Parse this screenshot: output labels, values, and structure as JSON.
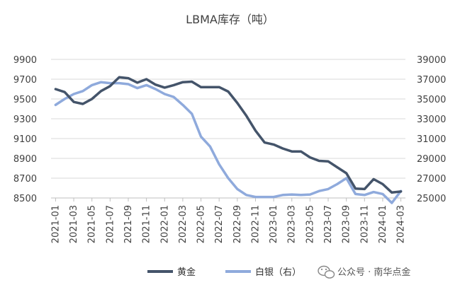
{
  "chart_data": {
    "type": "line",
    "title": "LBMA库存（吨）",
    "x": [
      "2021-01",
      "2021-02",
      "2021-03",
      "2021-04",
      "2021-05",
      "2021-06",
      "2021-07",
      "2021-08",
      "2021-09",
      "2021-10",
      "2021-11",
      "2021-12",
      "2022-01",
      "2022-02",
      "2022-03",
      "2022-04",
      "2022-05",
      "2022-06",
      "2022-07",
      "2022-08",
      "2022-09",
      "2022-10",
      "2022-11",
      "2022-12",
      "2023-01",
      "2023-02",
      "2023-03",
      "2023-04",
      "2023-05",
      "2023-06",
      "2023-07",
      "2023-08",
      "2023-09",
      "2023-10",
      "2023-11",
      "2023-12",
      "2024-01",
      "2024-02",
      "2024-03"
    ],
    "xtick_labels": [
      "2021-01",
      "2021-03",
      "2021-05",
      "2021-07",
      "2021-09",
      "2021-11",
      "2022-01",
      "2022-03",
      "2022-05",
      "2022-07",
      "2022-09",
      "2022-11",
      "2023-01",
      "2023-03",
      "2023-05",
      "2023-07",
      "2023-09",
      "2023-11",
      "2024-01",
      "2024-03"
    ],
    "y_left": {
      "ylim": [
        8500,
        10000
      ],
      "ticks": [
        "8500",
        "8700",
        "8900",
        "9100",
        "9300",
        "9500",
        "9700",
        "9900"
      ]
    },
    "y_right": {
      "ylim": [
        25000,
        40000
      ],
      "ticks": [
        "25000",
        "27000",
        "29000",
        "31000",
        "33000",
        "35000",
        "37000",
        "39000"
      ]
    },
    "grid": "horizontal",
    "legend_position": "bottom",
    "series": [
      {
        "name": "黄金",
        "axis": "left",
        "color": "#44546a",
        "values": [
          9600,
          9570,
          9470,
          9450,
          9500,
          9580,
          9630,
          9720,
          9710,
          9665,
          9700,
          9645,
          9615,
          9640,
          9670,
          9675,
          9620,
          9620,
          9620,
          9575,
          9460,
          9330,
          9180,
          9060,
          9040,
          9000,
          8970,
          8970,
          8910,
          8875,
          8870,
          8810,
          8750,
          8595,
          8590,
          8690,
          8640,
          8555,
          8565
        ]
      },
      {
        "name": "白银（右）",
        "axis": "right",
        "color": "#8faadc",
        "values": [
          34400,
          35000,
          35500,
          35800,
          36400,
          36700,
          36600,
          36600,
          36500,
          36100,
          36400,
          36000,
          35500,
          35200,
          34400,
          33500,
          31200,
          30200,
          28400,
          27000,
          25900,
          25300,
          25100,
          25100,
          25100,
          25300,
          25350,
          25300,
          25350,
          25700,
          25900,
          26400,
          27000,
          25400,
          25300,
          25600,
          25400,
          24500,
          25700
        ]
      }
    ]
  },
  "legend": {
    "gold_label": "黄金",
    "silver_label": "白银（右）"
  },
  "watermark": {
    "text": "公众号 · 南华点金",
    "icon": "wechat-icon"
  }
}
